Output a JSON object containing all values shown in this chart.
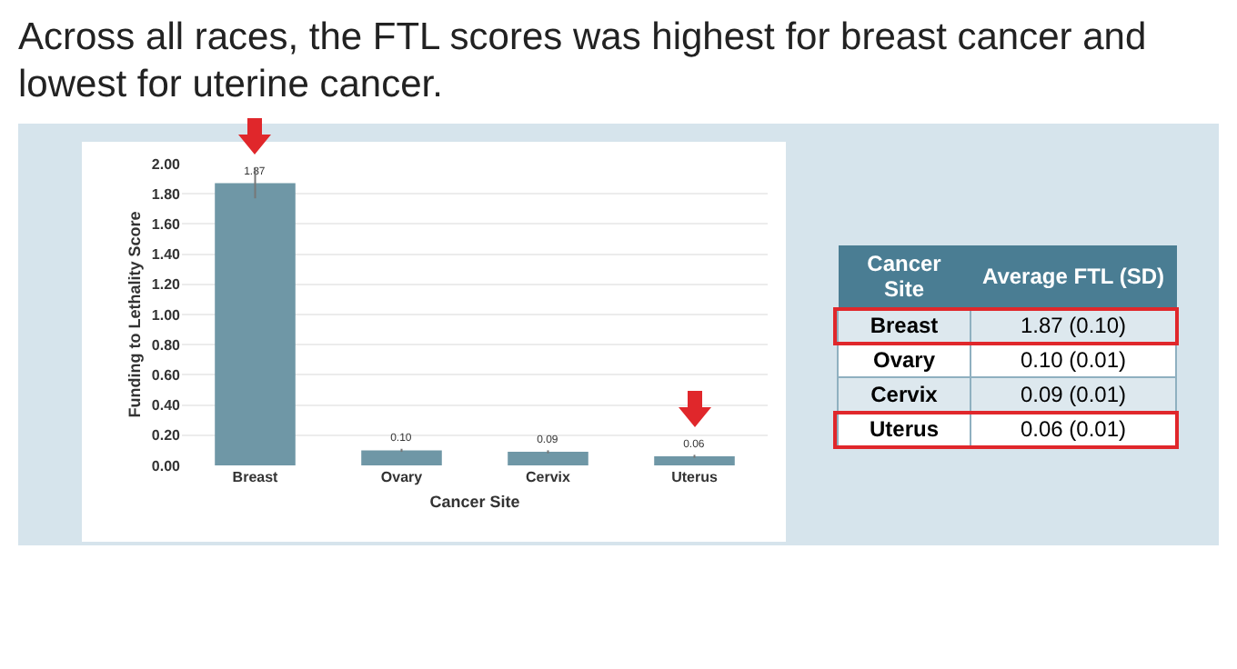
{
  "chart_data": [
    {
      "type": "bar",
      "title": "Across all races, the FTL scores was highest for breast cancer and lowest for uterine cancer.",
      "xlabel": "Cancer Site",
      "ylabel": "Funding to Lethality Score",
      "categories": [
        "Breast",
        "Ovary",
        "Cervix",
        "Uterus"
      ],
      "values": [
        1.87,
        0.1,
        0.09,
        0.06
      ],
      "errors": [
        0.1,
        0.01,
        0.01,
        0.01
      ],
      "value_labels": [
        "1.87",
        "0.10",
        "0.09",
        "0.06"
      ],
      "color": "#6f97a6",
      "ylim": [
        0,
        2
      ],
      "yticks": [
        {
          "value": 0,
          "label": "0.00"
        },
        {
          "value": 0.2,
          "label": "0.20"
        },
        {
          "value": 0.4,
          "label": "0.40"
        },
        {
          "value": 0.6,
          "label": "0.60"
        },
        {
          "value": 0.8,
          "label": "0.80"
        },
        {
          "value": 1,
          "label": "1.00"
        },
        {
          "value": 1.2,
          "label": "1.20"
        },
        {
          "value": 1.4,
          "label": "1.40"
        },
        {
          "value": 1.6,
          "label": "1.60"
        },
        {
          "value": 1.8,
          "label": "1.80"
        },
        {
          "value": 2,
          "label": "2.00"
        }
      ],
      "grid": "y"
    },
    {
      "type": "other",
      "annotations": [
        "Cancer Site",
        "Average FTL (SD)",
        "Breast",
        "1.87 (0.10)",
        "Ovary",
        "0.10 (0.01)",
        "Cervix",
        "0.09 (0.01)",
        "Uterus",
        "0.06 (0.01)"
      ]
    }
  ]
}
